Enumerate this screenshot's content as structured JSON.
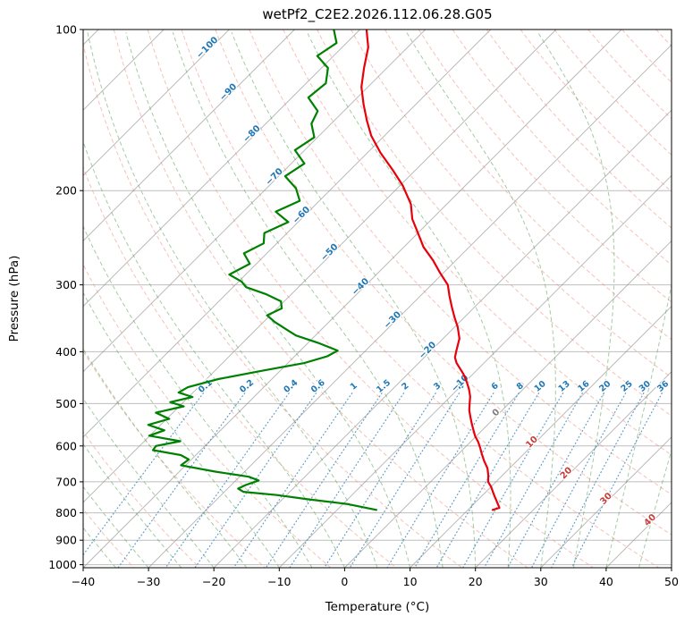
{
  "title": "wetPf2_C2E2.2026.112.06.28.G05",
  "style": {
    "background": "#ffffff",
    "grid_color": "#b8b8b8",
    "isotherm_color": "#8c8c8c",
    "dry_adiabat_color": "#ed8f7c",
    "moist_adiabat_color": "#5aa05a",
    "mixing_line_color": "#4a90c4",
    "mixing_label_color": "#1f77b4",
    "isotherm_label_neg_color": "#1f77b4",
    "isotherm_label_zero_color": "#7f7f7f",
    "isotherm_label_pos_color": "#c4403c",
    "axis_color": "#000000"
  },
  "chart_data": {
    "type": "line",
    "chart_kind": "skew-t-log-p-sounding",
    "title": "wetPf2_C2E2.2026.112.06.28.G05",
    "xlabel": "Temperature (°C)",
    "ylabel": "Pressure (hPa)",
    "x_ticks": [
      -40,
      -30,
      -20,
      -10,
      0,
      10,
      20,
      30,
      40,
      50
    ],
    "y_ticks": [
      100,
      200,
      300,
      400,
      500,
      600,
      700,
      800,
      900,
      1000
    ],
    "x_range_at_surface": [
      -40,
      50
    ],
    "pressure_range": [
      100,
      1013.25
    ],
    "skew_deg": 45,
    "isotherms": {
      "start": -150,
      "end": 50,
      "step": 10,
      "labels": [
        {
          "t": -100,
          "p": 109
        },
        {
          "t": -90,
          "p": 132
        },
        {
          "t": -80,
          "p": 158
        },
        {
          "t": -70,
          "p": 190
        },
        {
          "t": -60,
          "p": 224
        },
        {
          "t": -50,
          "p": 263
        },
        {
          "t": -40,
          "p": 305
        },
        {
          "t": -30,
          "p": 352
        },
        {
          "t": -20,
          "p": 401
        },
        {
          "t": -10,
          "p": 462
        },
        {
          "t": 0,
          "p": 524
        },
        {
          "t": 10,
          "p": 595
        },
        {
          "t": 20,
          "p": 680
        },
        {
          "t": 30,
          "p": 759
        },
        {
          "t": 40,
          "p": 832
        }
      ]
    },
    "dry_adiabats_theta_K": {
      "start": 230,
      "end": 470,
      "step": 10
    },
    "moist_adiabats_surface_T_C": {
      "start": -40,
      "end": 45,
      "step": 5
    },
    "mixing_ratio_g_kg": [
      0.1,
      0.2,
      0.4,
      0.6,
      1,
      1.5,
      2,
      3,
      4,
      6,
      8,
      10,
      13,
      16,
      20,
      25,
      30,
      36
    ],
    "mixing_line_top_p": 478,
    "mixing_label_p": 468,
    "series": [
      {
        "name": "temperature",
        "color": "#e8000b",
        "points": [
          [
            100,
            -79
          ],
          [
            108,
            -76
          ],
          [
            118,
            -73.5
          ],
          [
            128,
            -71
          ],
          [
            138,
            -68
          ],
          [
            148,
            -65
          ],
          [
            158,
            -62
          ],
          [
            170,
            -58
          ],
          [
            183,
            -53.5
          ],
          [
            196,
            -49.5
          ],
          [
            212,
            -45.5
          ],
          [
            226,
            -43
          ],
          [
            240,
            -40
          ],
          [
            255,
            -37
          ],
          [
            270,
            -33.5
          ],
          [
            285,
            -30.5
          ],
          [
            300,
            -27.5
          ],
          [
            315,
            -25.5
          ],
          [
            330,
            -23.5
          ],
          [
            345,
            -21.5
          ],
          [
            360,
            -19.5
          ],
          [
            378,
            -17.5
          ],
          [
            400,
            -16
          ],
          [
            410,
            -15.3
          ],
          [
            420,
            -14.2
          ],
          [
            440,
            -11.5
          ],
          [
            455,
            -9.8
          ],
          [
            470,
            -8.3
          ],
          [
            485,
            -7
          ],
          [
            500,
            -6
          ],
          [
            515,
            -5
          ],
          [
            530,
            -3.8
          ],
          [
            545,
            -2.6
          ],
          [
            560,
            -1.4
          ],
          [
            575,
            -0.2
          ],
          [
            590,
            1.2
          ],
          [
            605,
            2.4
          ],
          [
            620,
            3.5
          ],
          [
            640,
            5
          ],
          [
            660,
            6.6
          ],
          [
            680,
            7.8
          ],
          [
            700,
            8.8
          ],
          [
            715,
            10
          ],
          [
            730,
            11
          ],
          [
            745,
            12
          ],
          [
            760,
            13
          ],
          [
            772,
            13.8
          ],
          [
            783,
            14.5
          ],
          [
            790,
            13.8
          ]
        ]
      },
      {
        "name": "dewpoint",
        "color": "#008000",
        "points": [
          [
            100,
            -84
          ],
          [
            106,
            -81.5
          ],
          [
            112,
            -82.5
          ],
          [
            118,
            -79
          ],
          [
            126,
            -77
          ],
          [
            134,
            -77.5
          ],
          [
            142,
            -74
          ],
          [
            150,
            -73
          ],
          [
            159,
            -70.5
          ],
          [
            168,
            -71.5
          ],
          [
            178,
            -68
          ],
          [
            188,
            -69
          ],
          [
            198,
            -65.5
          ],
          [
            209,
            -63
          ],
          [
            219,
            -65
          ],
          [
            229,
            -61.5
          ],
          [
            240,
            -63.5
          ],
          [
            251,
            -62
          ],
          [
            262,
            -63.5
          ],
          [
            274,
            -61
          ],
          [
            287,
            -62.5
          ],
          [
            296,
            -59.5
          ],
          [
            303,
            -58
          ],
          [
            312,
            -54
          ],
          [
            322,
            -50.5
          ],
          [
            332,
            -49.3
          ],
          [
            342,
            -50.5
          ],
          [
            352,
            -48.3
          ],
          [
            363,
            -45.5
          ],
          [
            373,
            -43
          ],
          [
            385,
            -38.5
          ],
          [
            398,
            -34.3
          ],
          [
            408,
            -35
          ],
          [
            420,
            -37.5
          ],
          [
            434,
            -42.7
          ],
          [
            450,
            -48.2
          ],
          [
            466,
            -51.6
          ],
          [
            477,
            -52.2
          ],
          [
            486,
            -49.4
          ],
          [
            497,
            -52
          ],
          [
            506,
            -49.3
          ],
          [
            520,
            -52.6
          ],
          [
            534,
            -49.6
          ],
          [
            548,
            -51.9
          ],
          [
            561,
            -48.6
          ],
          [
            574,
            -50.1
          ],
          [
            588,
            -44.5
          ],
          [
            600,
            -47.5
          ],
          [
            611,
            -47.3
          ],
          [
            624,
            -42.3
          ],
          [
            636,
            -40.4
          ],
          [
            652,
            -40.7
          ],
          [
            670,
            -34.5
          ],
          [
            685,
            -28.6
          ],
          [
            696,
            -26.5
          ],
          [
            710,
            -27.8
          ],
          [
            721,
            -28.4
          ],
          [
            731,
            -27.1
          ],
          [
            741,
            -21.5
          ],
          [
            755,
            -16
          ],
          [
            770,
            -9.5
          ],
          [
            790,
            -4
          ]
        ]
      }
    ]
  }
}
